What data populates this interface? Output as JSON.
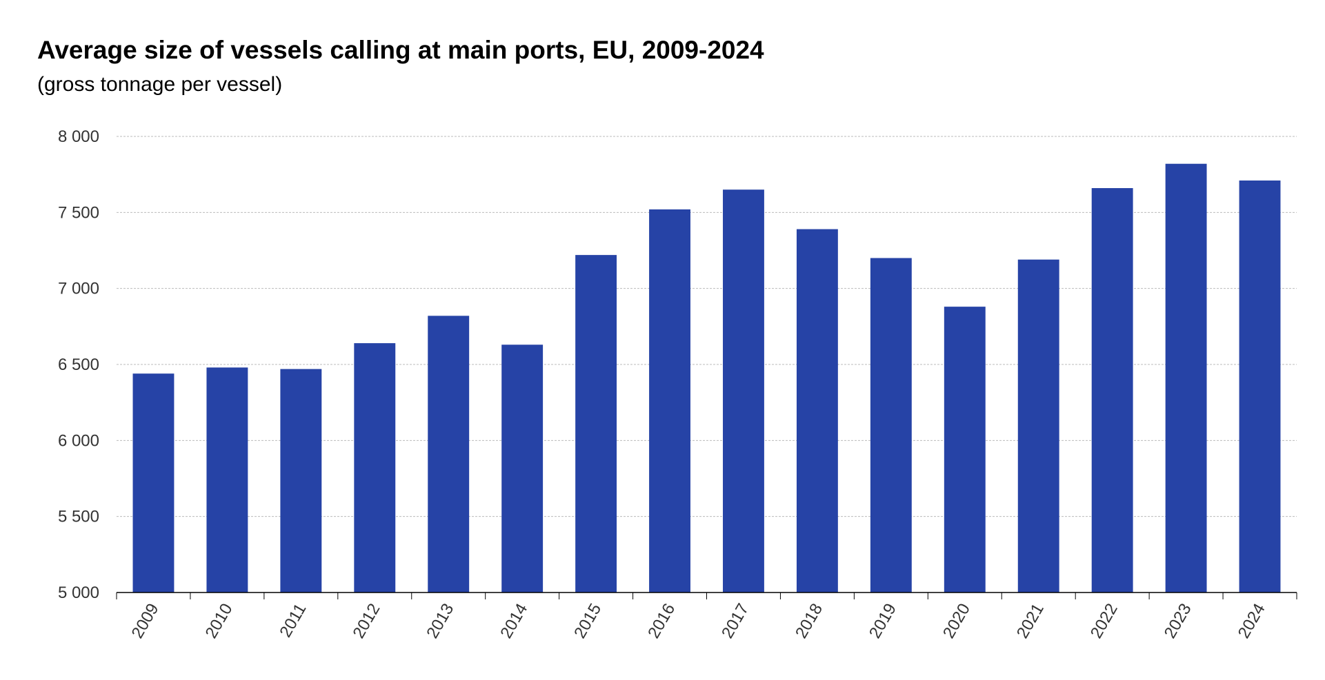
{
  "chart_data": {
    "type": "bar",
    "title": "Average size of vessels calling at main ports, EU, 2009-2024",
    "subtitle": "(gross tonnage per vessel)",
    "xlabel": "",
    "ylabel": "",
    "categories": [
      "2009",
      "2010",
      "2011",
      "2012",
      "2013",
      "2014",
      "2015",
      "2016",
      "2017",
      "2018",
      "2019",
      "2020",
      "2021",
      "2022",
      "2023",
      "2024"
    ],
    "values": [
      6440,
      6480,
      6470,
      6640,
      6820,
      6630,
      7220,
      7520,
      7650,
      7390,
      7200,
      6880,
      7190,
      7660,
      7820,
      7710
    ],
    "ylim": [
      5000,
      8000
    ],
    "yticks": [
      5000,
      5500,
      6000,
      6500,
      7000,
      7500,
      8000
    ],
    "ytick_labels": [
      "5 000",
      "5 500",
      "6 000",
      "6 500",
      "7 000",
      "7 500",
      "8 000"
    ],
    "grid": "horizontal dashed",
    "legend": "none",
    "bar_color": "#2643A6"
  }
}
